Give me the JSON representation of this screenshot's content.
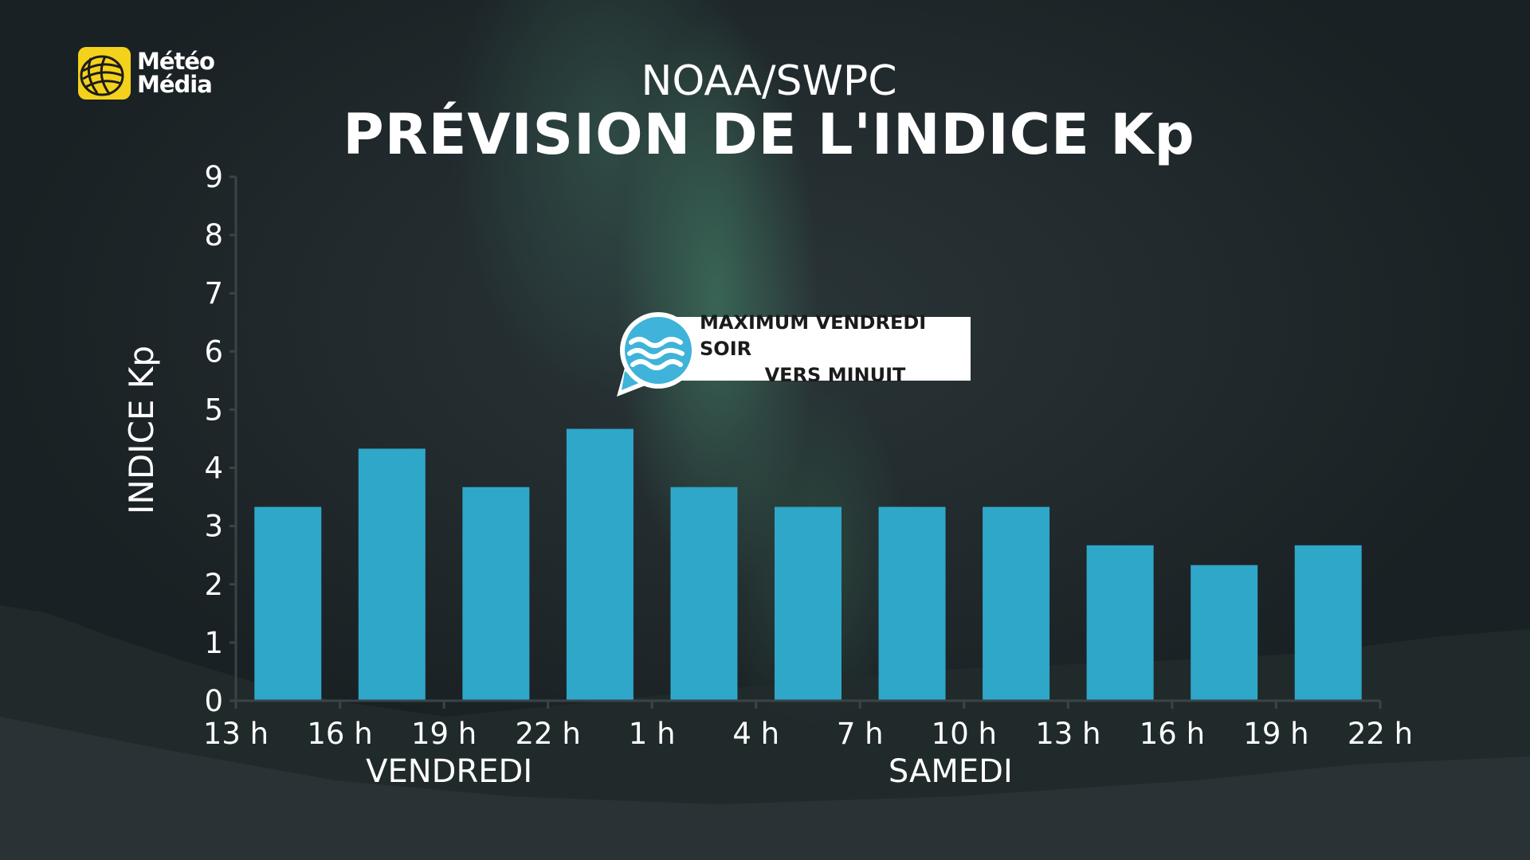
{
  "brand": {
    "name_line1": "Météo",
    "name_line2": "Média",
    "accent_color": "#f4d21c"
  },
  "header": {
    "subtitle": "NOAA/SWPC",
    "title": "PRÉVISION DE L'INDICE Kp"
  },
  "callout": {
    "line1": "MAXIMUM VENDREDI SOIR",
    "line2": "VERS MINUIT",
    "icon": "wave-speech-bubble-icon"
  },
  "chart_data": {
    "type": "bar",
    "title": "PRÉVISION DE L'INDICE Kp",
    "subtitle": "NOAA/SWPC",
    "ylabel": "INDICE Kp",
    "xlabel": "",
    "ylim": [
      0,
      9
    ],
    "yticks": [
      0,
      1,
      2,
      3,
      4,
      5,
      6,
      7,
      8,
      9
    ],
    "xticks": [
      "13 h",
      "16 h",
      "19 h",
      "22 h",
      "1 h",
      "4 h",
      "7 h",
      "10 h",
      "13 h",
      "16 h",
      "19 h",
      "22 h"
    ],
    "day_labels": [
      "VENDREDI",
      "SAMEDI"
    ],
    "values": [
      3.33,
      4.33,
      3.67,
      4.67,
      3.67,
      3.33,
      3.33,
      3.33,
      2.67,
      2.33,
      2.67
    ],
    "bar_color": "#2fa7c9",
    "grid": false,
    "legend": "none"
  }
}
